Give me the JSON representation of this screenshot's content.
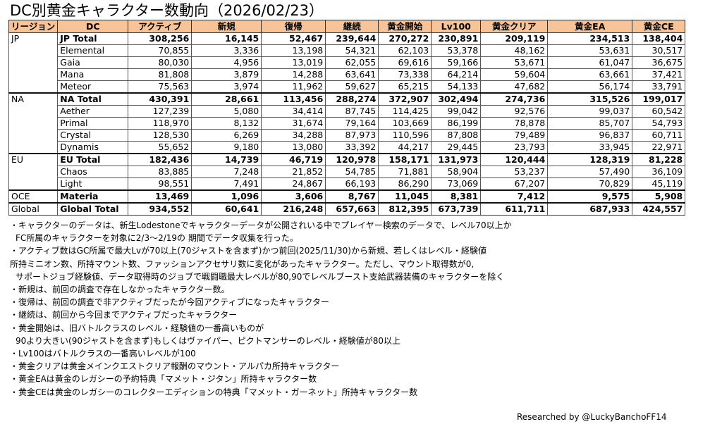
{
  "title": "DC別黄金キャラクター数動向（2026/02/23）",
  "table": {
    "headers": [
      "リージョン",
      "DC",
      "アクティブ",
      "新規",
      "復帰",
      "継続",
      "黄金開始",
      "Lv100",
      "黄金クリア",
      "黄金EA",
      "黄金CE"
    ],
    "groups": [
      {
        "region": "JP",
        "rows": [
          {
            "dc": "JP Total",
            "total": true,
            "values": [
              "308,256",
              "16,145",
              "52,467",
              "239,644",
              "270,272",
              "230,891",
              "209,119",
              "234,513",
              "138,404"
            ]
          },
          {
            "dc": "Elemental",
            "values": [
              "70,855",
              "3,336",
              "13,198",
              "54,321",
              "62,103",
              "53,378",
              "48,162",
              "53,631",
              "30,517"
            ]
          },
          {
            "dc": "Gaia",
            "values": [
              "80,030",
              "4,956",
              "13,019",
              "62,055",
              "69,616",
              "59,166",
              "53,671",
              "61,047",
              "36,675"
            ]
          },
          {
            "dc": "Mana",
            "values": [
              "81,808",
              "3,879",
              "14,288",
              "63,641",
              "73,338",
              "64,214",
              "59,604",
              "63,661",
              "37,421"
            ]
          },
          {
            "dc": "Meteor",
            "values": [
              "75,563",
              "3,974",
              "11,962",
              "59,627",
              "65,215",
              "54,133",
              "47,682",
              "56,174",
              "33,791"
            ]
          }
        ]
      },
      {
        "region": "NA",
        "rows": [
          {
            "dc": "NA Total",
            "total": true,
            "values": [
              "430,391",
              "28,661",
              "113,456",
              "288,274",
              "372,907",
              "302,494",
              "274,736",
              "315,526",
              "199,017"
            ]
          },
          {
            "dc": "Aether",
            "values": [
              "127,239",
              "5,080",
              "34,414",
              "87,745",
              "114,425",
              "99,042",
              "92,576",
              "99,037",
              "60,542"
            ]
          },
          {
            "dc": "Primal",
            "values": [
              "118,970",
              "8,132",
              "31,674",
              "79,164",
              "103,669",
              "86,199",
              "78,878",
              "85,707",
              "54,793"
            ]
          },
          {
            "dc": "Crystal",
            "values": [
              "128,530",
              "6,269",
              "34,288",
              "87,973",
              "110,596",
              "87,808",
              "79,489",
              "96,837",
              "60,711"
            ]
          },
          {
            "dc": "Dynamis",
            "values": [
              "55,652",
              "9,180",
              "13,080",
              "33,392",
              "44,217",
              "29,445",
              "23,793",
              "33,945",
              "22,971"
            ]
          }
        ]
      },
      {
        "region": "EU",
        "rows": [
          {
            "dc": "EU Total",
            "total": true,
            "values": [
              "182,436",
              "14,739",
              "46,719",
              "120,978",
              "158,171",
              "131,973",
              "120,444",
              "128,319",
              "81,228"
            ]
          },
          {
            "dc": "Chaos",
            "values": [
              "83,885",
              "7,248",
              "21,852",
              "54,785",
              "71,881",
              "58,904",
              "53,237",
              "57,490",
              "36,109"
            ]
          },
          {
            "dc": "Light",
            "values": [
              "98,551",
              "7,491",
              "24,867",
              "66,193",
              "86,290",
              "73,069",
              "67,207",
              "70,829",
              "45,119"
            ]
          }
        ]
      },
      {
        "region": "OCE",
        "rows": [
          {
            "dc": "Materia",
            "total": true,
            "values": [
              "13,469",
              "1,096",
              "3,606",
              "8,767",
              "11,045",
              "8,381",
              "7,412",
              "9,575",
              "5,908"
            ]
          }
        ]
      },
      {
        "region": "Global",
        "rows": [
          {
            "dc": "Global Total",
            "total": true,
            "values": [
              "934,552",
              "60,641",
              "216,248",
              "657,663",
              "812,395",
              "673,739",
              "611,711",
              "687,933",
              "424,557"
            ]
          }
        ]
      }
    ]
  },
  "notes": [
    {
      "text": "・キャラクターのデータは、新生Lodestoneでキャラクターデータが公開されいる中でプレイヤー検索のデータで、レベル70以上か",
      "indent": 0
    },
    {
      "text": "FC所属のキャラクターを対象に2/3～2/19の 期間でデータ収集を行った。",
      "indent": 1
    },
    {
      "text": "・アクティブ数はGC所属で最大Lvが70以上(70ジャストを含まず)かつ前回(2025/11/30)から新規、若しくはレベル・経験値",
      "indent": 0
    },
    {
      "text": "所持ミニオン数、所持マウント数、ファッションアクセサリ数に変化があったキャラクター。ただし、マウント取得数が0,",
      "indent": 0
    },
    {
      "text": "サポートジョブ経験値、データ取得時のジョブで戦闘職最大レベルが80,90でレベルブースト支給武器装備のキャラクターを除く",
      "indent": 1
    },
    {
      "text": "・新規は、前回の調査で存在しなかったキャラクター数。",
      "indent": 0
    },
    {
      "text": "・復帰は、前回の調査で非アクティブだったが今回アクティブになったキャラクター",
      "indent": 0
    },
    {
      "text": "・継続は、前回から今回までアクティブだったキャラクター",
      "indent": 0
    },
    {
      "text": "・黄金開始は、旧バトルクラスのレベル・経験値の一番高いものが",
      "indent": 0
    },
    {
      "text": "90より大きい(90ジャストを含まず)もしくはヴァイパー、ピクトマンサーのレベル・経験値が80以上",
      "indent": 1
    },
    {
      "text": "・Lv100はバトルクラスの一番高いレベルが100",
      "indent": 0
    },
    {
      "text": "・黄金クリアは黄金メインクエストクリア報酬のマウント・アルパカ所持キャラクター",
      "indent": 0
    },
    {
      "text": "・黄金EAは黄金のレガシーの予約特典「マメット・ジタン」所持キャラクター数",
      "indent": 0
    },
    {
      "text": "・黄金CEは黄金のレガシーのコレクターエディションの特典「マメット・ガーネット」所持キャラクター数",
      "indent": 0
    }
  ],
  "credit": "Researched by @LuckyBanchoFF14",
  "colors": {
    "header_bg": "#f8c396",
    "border": "#555555"
  }
}
